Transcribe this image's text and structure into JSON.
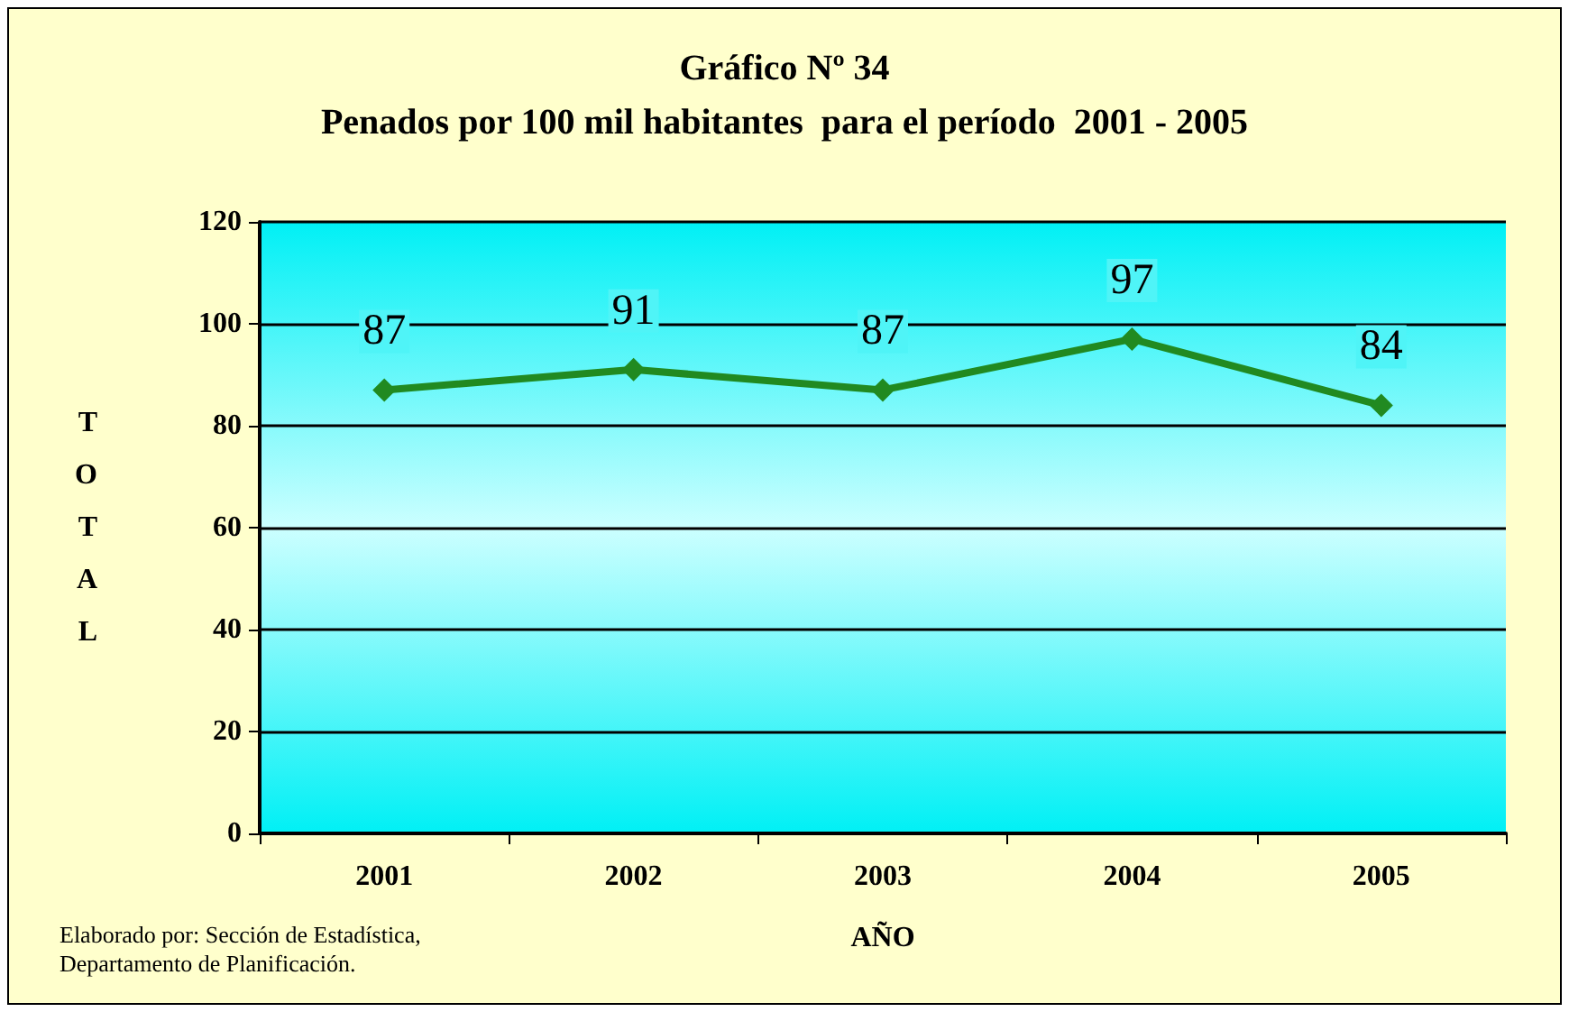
{
  "chart_data": {
    "type": "line",
    "title": "Gráfico Nº 34",
    "subtitle": "Penados por 100 mil habitantes  para el período  2001 - 2005",
    "xlabel": "AÑO",
    "ylabel": "TOTAL",
    "categories": [
      "2001",
      "2002",
      "2003",
      "2004",
      "2005"
    ],
    "series": [
      {
        "color": "#218a21",
        "values": [
          87,
          91,
          87,
          97,
          84
        ]
      }
    ],
    "data_labels": true,
    "marker": "diamond",
    "line_style": "solid",
    "grid": "y",
    "ylim": [
      0,
      120
    ],
    "yticks": [
      0,
      20,
      40,
      60,
      80,
      100,
      120
    ],
    "annotations": [
      "Elaborado por: Sección de Estadística,\nDepartamento de Planificación."
    ]
  }
}
